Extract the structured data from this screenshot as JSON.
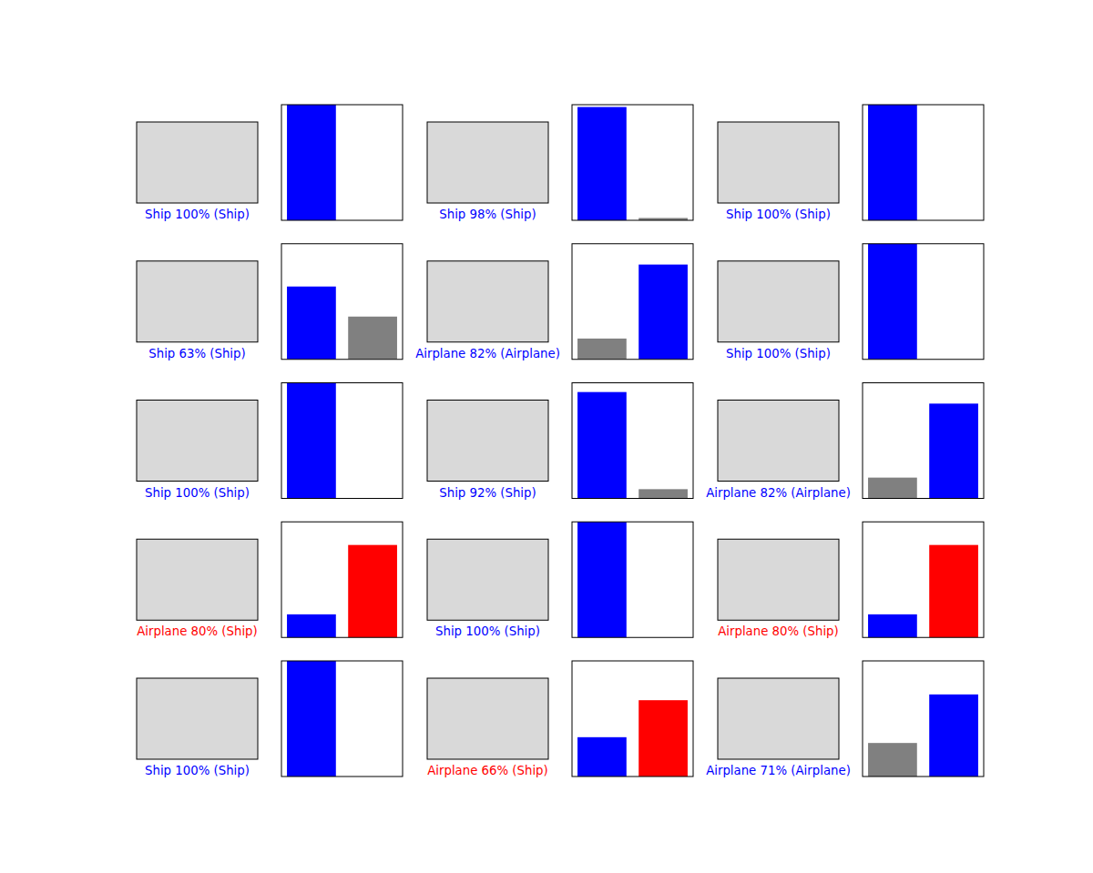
{
  "chart_data": [
    {
      "type": "bar",
      "title": "Ship 100% (Ship)",
      "categories": [
        null,
        null
      ],
      "values": [
        100,
        0
      ],
      "colors": [
        "#0000ff",
        "#808080"
      ],
      "ylim": [
        0,
        100
      ],
      "tick_labels": false
    },
    {
      "type": "bar",
      "title": "Ship 98% (Ship)",
      "categories": [
        null,
        null
      ],
      "values": [
        98,
        2
      ],
      "colors": [
        "#0000ff",
        "#808080"
      ],
      "ylim": [
        0,
        100
      ],
      "tick_labels": false
    },
    {
      "type": "bar",
      "title": "Ship 100% (Ship)",
      "categories": [
        null,
        null
      ],
      "values": [
        100,
        0
      ],
      "colors": [
        "#0000ff",
        "#808080"
      ],
      "ylim": [
        0,
        100
      ],
      "tick_labels": false
    },
    {
      "type": "bar",
      "title": "Ship 63% (Ship)",
      "categories": [
        null,
        null
      ],
      "values": [
        63,
        37
      ],
      "colors": [
        "#0000ff",
        "#808080"
      ],
      "ylim": [
        0,
        100
      ],
      "tick_labels": false
    },
    {
      "type": "bar",
      "title": "Airplane 82% (Airplane)",
      "categories": [
        null,
        null
      ],
      "values": [
        18,
        82
      ],
      "colors": [
        "#808080",
        "#0000ff"
      ],
      "ylim": [
        0,
        100
      ],
      "tick_labels": false
    },
    {
      "type": "bar",
      "title": "Ship 100% (Ship)",
      "categories": [
        null,
        null
      ],
      "values": [
        100,
        0
      ],
      "colors": [
        "#0000ff",
        "#808080"
      ],
      "ylim": [
        0,
        100
      ],
      "tick_labels": false
    },
    {
      "type": "bar",
      "title": "Ship 100% (Ship)",
      "categories": [
        null,
        null
      ],
      "values": [
        100,
        0
      ],
      "colors": [
        "#0000ff",
        "#808080"
      ],
      "ylim": [
        0,
        100
      ],
      "tick_labels": false
    },
    {
      "type": "bar",
      "title": "Ship 92% (Ship)",
      "categories": [
        null,
        null
      ],
      "values": [
        92,
        8
      ],
      "colors": [
        "#0000ff",
        "#808080"
      ],
      "ylim": [
        0,
        100
      ],
      "tick_labels": false
    },
    {
      "type": "bar",
      "title": "Airplane 82% (Airplane)",
      "categories": [
        null,
        null
      ],
      "values": [
        18,
        82
      ],
      "colors": [
        "#808080",
        "#0000ff"
      ],
      "ylim": [
        0,
        100
      ],
      "tick_labels": false
    },
    {
      "type": "bar",
      "title": "Airplane 80% (Ship)",
      "categories": [
        null,
        null
      ],
      "values": [
        20,
        80
      ],
      "colors": [
        "#0000ff",
        "#ff0000"
      ],
      "ylim": [
        0,
        100
      ],
      "tick_labels": false
    },
    {
      "type": "bar",
      "title": "Ship 100% (Ship)",
      "categories": [
        null,
        null
      ],
      "values": [
        100,
        0
      ],
      "colors": [
        "#0000ff",
        "#808080"
      ],
      "ylim": [
        0,
        100
      ],
      "tick_labels": false
    },
    {
      "type": "bar",
      "title": "Airplane 80% (Ship)",
      "categories": [
        null,
        null
      ],
      "values": [
        20,
        80
      ],
      "colors": [
        "#0000ff",
        "#ff0000"
      ],
      "ylim": [
        0,
        100
      ],
      "tick_labels": false
    },
    {
      "type": "bar",
      "title": "Ship 100% (Ship)",
      "categories": [
        null,
        null
      ],
      "values": [
        100,
        0
      ],
      "colors": [
        "#0000ff",
        "#808080"
      ],
      "ylim": [
        0,
        100
      ],
      "tick_labels": false
    },
    {
      "type": "bar",
      "title": "Airplane 66% (Ship)",
      "categories": [
        null,
        null
      ],
      "values": [
        34,
        66
      ],
      "colors": [
        "#0000ff",
        "#ff0000"
      ],
      "ylim": [
        0,
        100
      ],
      "tick_labels": false
    },
    {
      "type": "bar",
      "title": "Airplane 71% (Airplane)",
      "categories": [
        null,
        null
      ],
      "values": [
        29,
        71
      ],
      "colors": [
        "#808080",
        "#0000ff"
      ],
      "ylim": [
        0,
        100
      ],
      "tick_labels": false
    }
  ]
}
